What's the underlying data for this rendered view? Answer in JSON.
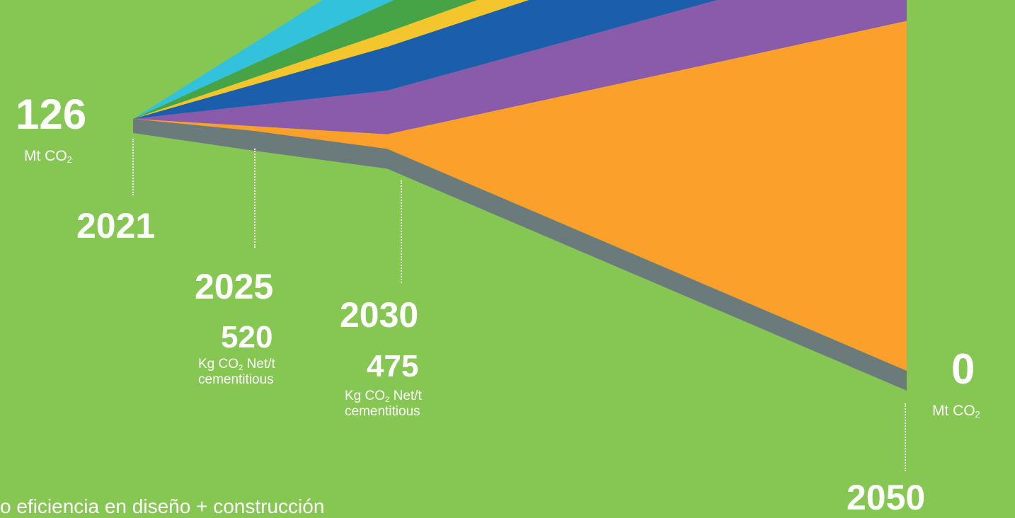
{
  "colors": {
    "background": "#86c753",
    "text": "#ffffff"
  },
  "chart_data": {
    "type": "area",
    "title": "",
    "x": [
      2021,
      2030,
      2050
    ],
    "series_stack_order": "top-to-bottom",
    "series": [
      {
        "color": "#33c2db",
        "values": [
          0,
          3,
          9
        ]
      },
      {
        "color": "#46a447",
        "values": [
          0,
          2,
          5
        ]
      },
      {
        "color": "#f5c52e",
        "values": [
          0,
          1,
          2
        ]
      },
      {
        "color": "#1b5eab",
        "values": [
          0,
          3,
          5
        ]
      },
      {
        "color": "#8a5aab",
        "values": [
          0,
          3,
          5
        ]
      },
      {
        "color": "#fba12b",
        "values": [
          0,
          1,
          24
        ]
      }
    ],
    "emission_line": {
      "color": "#6b7b7c",
      "x": [
        2021,
        2025,
        2030,
        2050
      ],
      "values": [
        126,
        120,
        111,
        0
      ]
    },
    "start": {
      "value": "126",
      "unit": "Mt CO",
      "unit_sub": "2",
      "year": "2021"
    },
    "milestones": [
      {
        "year": "2025",
        "value": "520",
        "unit_line1": "Kg CO",
        "unit_sub": "2",
        "unit_line1_tail": " Net/t",
        "unit_line2": "cementitious"
      },
      {
        "year": "2030",
        "value": "475",
        "unit_line1": "Kg CO",
        "unit_sub": "2",
        "unit_line1_tail": " Net/t",
        "unit_line2": "cementitious"
      }
    ],
    "end": {
      "value": "0",
      "unit": "Mt CO",
      "unit_sub": "2",
      "year": "2050"
    }
  },
  "legend_partial": "o eficiencia en diseño + construcción"
}
